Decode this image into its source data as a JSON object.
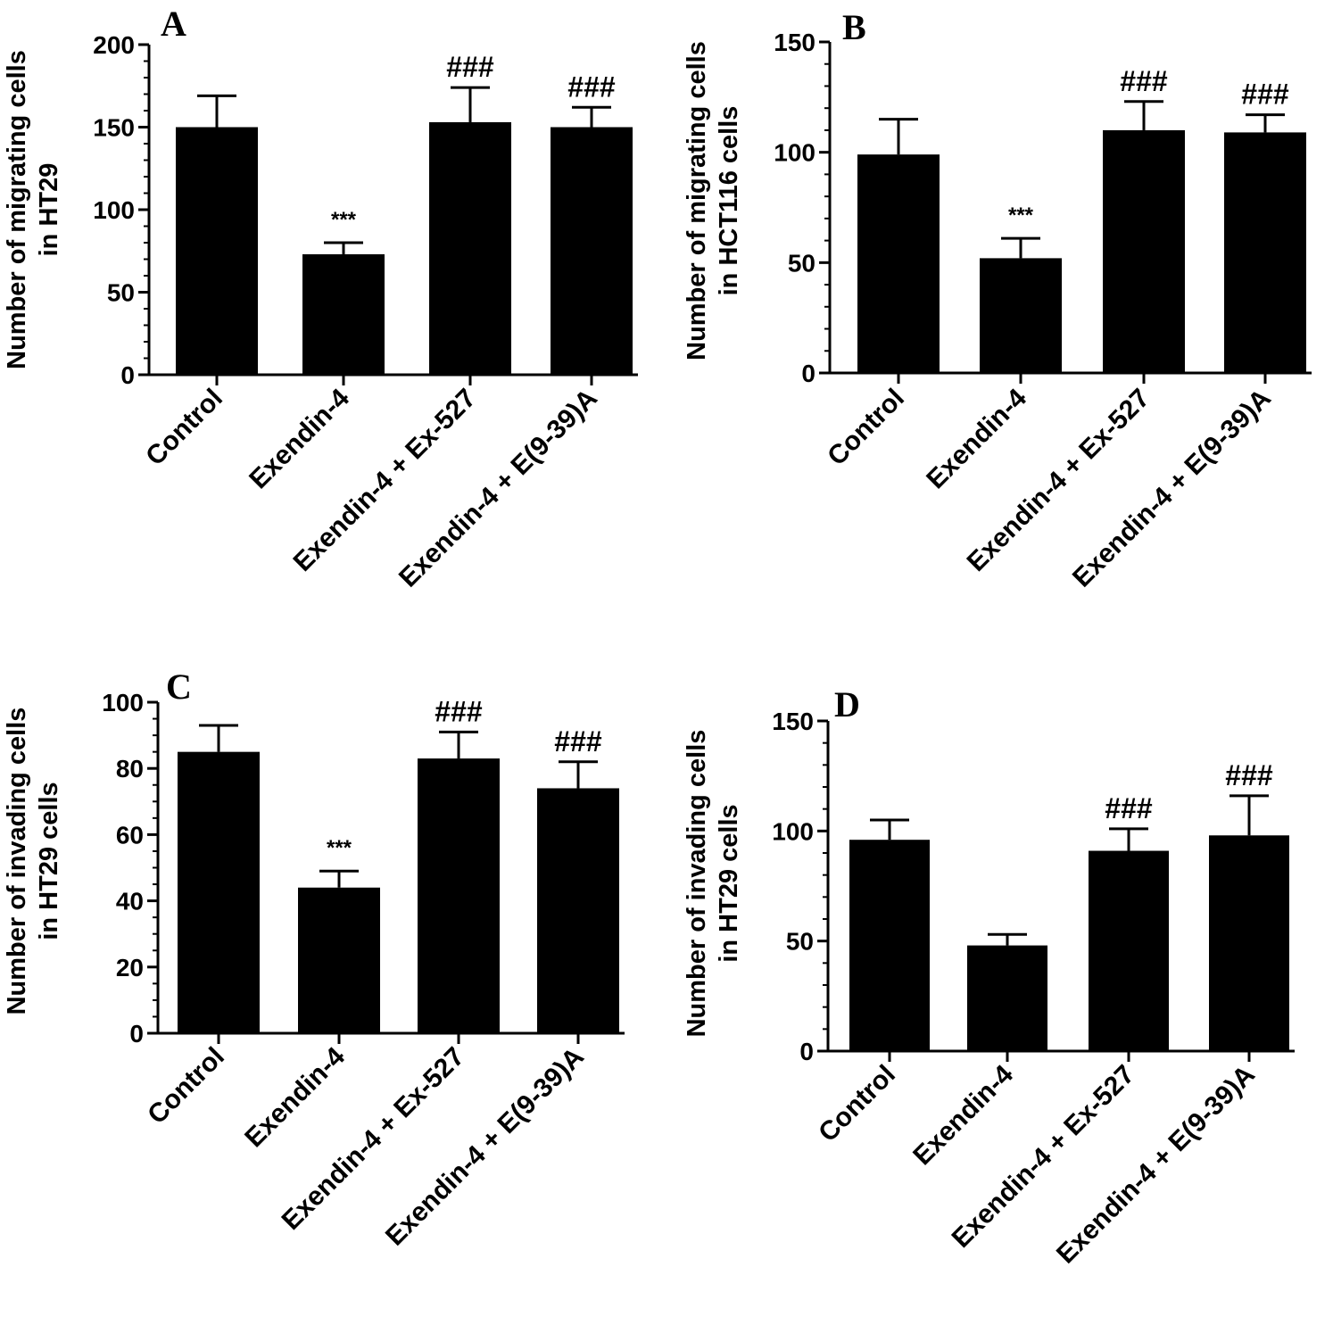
{
  "colors": {
    "bar": "#000000",
    "background": "#ffffff"
  },
  "chart_data": [
    {
      "panel": "A",
      "type": "bar",
      "ylabel": [
        "Number of migrating cells",
        "in HT29"
      ],
      "categories": [
        "Control",
        "Exendin-4",
        "Exendin-4 + Ex-527",
        "Exendin-4 + E(9-39)A"
      ],
      "values": [
        150,
        73,
        153,
        150
      ],
      "errors": [
        19,
        7,
        21,
        12
      ],
      "annotations": [
        "",
        "***",
        "###",
        "###"
      ],
      "yticks": [
        0,
        50,
        100,
        150,
        200
      ],
      "ylim": [
        0,
        200
      ]
    },
    {
      "panel": "B",
      "type": "bar",
      "ylabel": [
        "Number of migrating cells",
        "in HCT116 cells"
      ],
      "categories": [
        "Control",
        "Exendin-4",
        "Exendin-4 + Ex-527",
        "Exendin-4 + E(9-39)A"
      ],
      "values": [
        99,
        52,
        110,
        109
      ],
      "errors": [
        16,
        9,
        13,
        8
      ],
      "annotations": [
        "",
        "***",
        "###",
        "###"
      ],
      "yticks": [
        0,
        50,
        100,
        150
      ],
      "ylim": [
        0,
        150
      ]
    },
    {
      "panel": "C",
      "type": "bar",
      "ylabel": [
        "Number of invading cells",
        "in HT29 cells"
      ],
      "categories": [
        "Control",
        "Exendin-4",
        "Exendin-4 + Ex-527",
        "Exendin-4 + E(9-39)A"
      ],
      "values": [
        85,
        44,
        83,
        74
      ],
      "errors": [
        8,
        5,
        8,
        8
      ],
      "annotations": [
        "",
        "***",
        "###",
        "###"
      ],
      "yticks": [
        0,
        20,
        40,
        60,
        80,
        100
      ],
      "ylim": [
        0,
        100
      ]
    },
    {
      "panel": "D",
      "type": "bar",
      "ylabel": [
        "Number of invading cells",
        "in HT29 cells"
      ],
      "categories": [
        "Control",
        "Exendin-4",
        "Exendin-4 + Ex-527",
        "Exendin-4 + E(9-39)A"
      ],
      "values": [
        96,
        48,
        91,
        98
      ],
      "errors": [
        9,
        5,
        10,
        18
      ],
      "annotations": [
        "",
        "",
        "###",
        "###"
      ],
      "yticks": [
        0,
        50,
        100,
        150
      ],
      "ylim": [
        0,
        150
      ]
    }
  ]
}
